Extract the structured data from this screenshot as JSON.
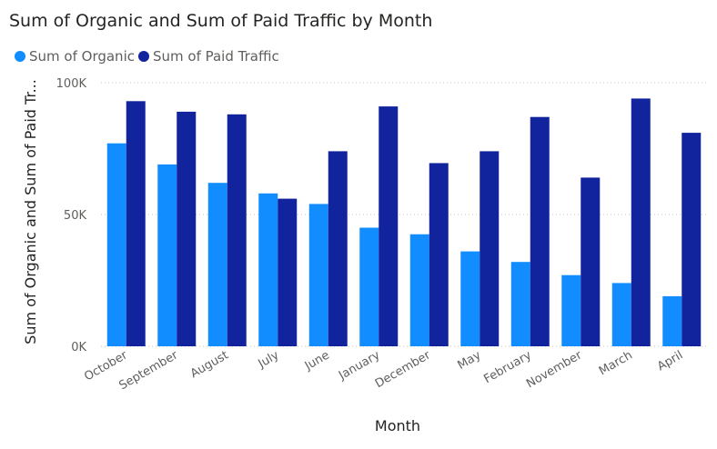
{
  "title": "Sum of Organic and Sum of Paid Traffic by Month",
  "legend": [
    {
      "label": "Sum of Organic",
      "color": "#118DFF"
    },
    {
      "label": "Sum of Paid Traffic",
      "color": "#12239E"
    }
  ],
  "chart_data": {
    "type": "bar",
    "title": "Sum of Organic and Sum of Paid Traffic by Month",
    "xlabel": "Month",
    "ylabel": "Sum of Organic and Sum of Paid Tr...",
    "ylim": [
      0,
      100000
    ],
    "yticks": [
      {
        "value": 0,
        "label": "0K"
      },
      {
        "value": 50000,
        "label": "50K"
      },
      {
        "value": 100000,
        "label": "100K"
      }
    ],
    "grid": true,
    "legend_position": "top-left",
    "categories": [
      "October",
      "September",
      "August",
      "July",
      "June",
      "January",
      "December",
      "May",
      "February",
      "November",
      "March",
      "April"
    ],
    "series": [
      {
        "name": "Sum of Organic",
        "color": "#118DFF",
        "values": [
          77000,
          69000,
          62000,
          58000,
          54000,
          45000,
          42500,
          36000,
          32000,
          27000,
          24000,
          19000
        ]
      },
      {
        "name": "Sum of Paid Traffic",
        "color": "#12239E",
        "values": [
          93000,
          89000,
          88000,
          56000,
          74000,
          91000,
          69500,
          74000,
          87000,
          64000,
          94000,
          81000
        ]
      }
    ]
  }
}
